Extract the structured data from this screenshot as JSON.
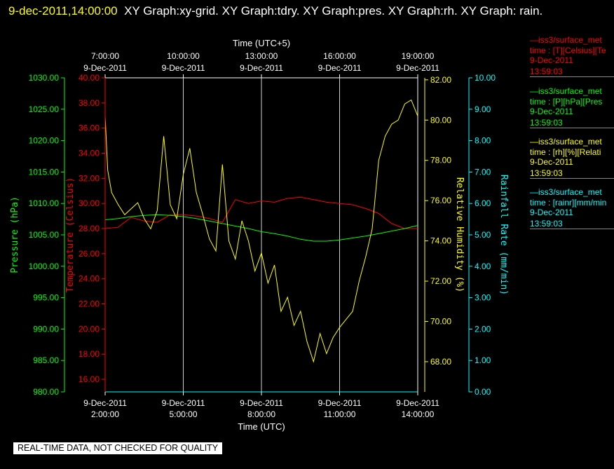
{
  "header": {
    "timestamp": "9-dec-2011,14:00:00",
    "title_rest": "XY Graph:xy-grid.  XY Graph:tdry.  XY Graph:pres.  XY Graph:rh.  XY Graph: rain."
  },
  "footer": {
    "notice": "REAL-TIME DATA, NOT CHECKED FOR QUALITY"
  },
  "legend": [
    {
      "line1": "—iss3/surface_met",
      "line2": "time : [T][Celsius][Te",
      "line3": "9-Dec-2011",
      "line4": "13:59:03",
      "color": "#ff0000"
    },
    {
      "line1": "—iss3/surface_met",
      "line2": "time : [P][hPa][Pres",
      "line3": "9-Dec-2011",
      "line4": "13:59:03",
      "color": "#00ff00"
    },
    {
      "line1": "—iss3/surface_met",
      "line2": "time : [rh][%][Relati",
      "line3": "9-Dec-2011",
      "line4": "13:59:03",
      "color": "#ffff00"
    },
    {
      "line1": "—iss3/surface_met",
      "line2": "time : [rainr][mm/min",
      "line3": "9-Dec-2011",
      "line4": "13:59:03",
      "color": "#00ffff"
    }
  ],
  "chart_data": {
    "type": "line",
    "grid": true,
    "top_axis": {
      "label": "Time (UTC+5)",
      "ticks": [
        {
          "time": "7:00:00",
          "date": "9-Dec-2011"
        },
        {
          "time": "10:00:00",
          "date": "9-Dec-2011"
        },
        {
          "time": "13:00:00",
          "date": "9-Dec-2011"
        },
        {
          "time": "16:00:00",
          "date": "9-Dec-2011"
        },
        {
          "time": "19:00:00",
          "date": "9-Dec-2011"
        }
      ]
    },
    "bottom_axis": {
      "label": "Time (UTC)",
      "xlim": [
        "2:00:00",
        "14:00:00"
      ],
      "ticks": [
        {
          "date": "9-Dec-2011",
          "time": "2:00:00"
        },
        {
          "date": "9-Dec-2011",
          "time": "5:00:00"
        },
        {
          "date": "9-Dec-2011",
          "time": "8:00:00"
        },
        {
          "date": "9-Dec-2011",
          "time": "11:00:00"
        },
        {
          "date": "9-Dec-2011",
          "time": "14:00:00"
        }
      ]
    },
    "y_axes": [
      {
        "key": "pressure",
        "label": "Pressure (hPa)",
        "color": "#00ff00",
        "ylim": [
          980,
          1030
        ],
        "ticks": [
          "980.00",
          "985.00",
          "990.00",
          "995.00",
          "1000.00",
          "1005.00",
          "1010.00",
          "1015.00",
          "1020.00",
          "1025.00",
          "1030.00"
        ]
      },
      {
        "key": "temperature",
        "label": "Temperature (Celsius)",
        "color": "#ff0000",
        "ylim": [
          15,
          40
        ],
        "ticks": [
          "16.00",
          "18.00",
          "20.00",
          "22.00",
          "24.00",
          "26.00",
          "28.00",
          "30.00",
          "32.00",
          "34.00",
          "36.00",
          "38.00",
          "40.00"
        ]
      },
      {
        "key": "humidity",
        "label": "Relative Humidity (%)",
        "color": "#ffff00",
        "ylim": [
          66.5,
          82.1
        ],
        "ticks": [
          "68.00",
          "70.00",
          "72.00",
          "74.00",
          "76.00",
          "78.00",
          "80.00",
          "82.00"
        ]
      },
      {
        "key": "rain",
        "label": "Rainfall Rate (mm/min)",
        "color": "#00ffff",
        "ylim": [
          0,
          10
        ],
        "ticks": [
          "0.00",
          "1.00",
          "2.00",
          "3.00",
          "4.00",
          "5.00",
          "6.00",
          "7.00",
          "8.00",
          "9.00",
          "10.00"
        ]
      }
    ],
    "series": [
      {
        "axis": "temperature",
        "color": "#ff0000",
        "x": [
          2.0,
          2.5,
          3.0,
          3.5,
          4.0,
          4.5,
          5.0,
          5.5,
          6.0,
          6.5,
          7.0,
          7.5,
          8.0,
          8.5,
          9.0,
          9.5,
          10.0,
          10.5,
          11.0,
          11.5,
          12.0,
          12.5,
          13.0,
          13.5,
          14.0
        ],
        "y": [
          28.0,
          28.1,
          28.9,
          28.6,
          28.5,
          29.1,
          29.1,
          29.0,
          28.8,
          28.5,
          30.3,
          30.0,
          30.2,
          30.1,
          30.4,
          30.5,
          30.3,
          30.1,
          30.0,
          29.9,
          29.6,
          29.2,
          28.4,
          28.0,
          28.0
        ]
      },
      {
        "axis": "pressure",
        "color": "#00ff00",
        "x": [
          2.0,
          2.5,
          3.0,
          3.5,
          4.0,
          4.5,
          5.0,
          5.5,
          6.0,
          6.5,
          7.0,
          7.5,
          8.0,
          8.5,
          9.0,
          9.5,
          10.0,
          10.5,
          11.0,
          11.5,
          12.0,
          12.5,
          13.0,
          13.5,
          14.0
        ],
        "y": [
          1007.4,
          1007.6,
          1007.9,
          1008.1,
          1008.2,
          1008.1,
          1007.9,
          1007.6,
          1007.2,
          1006.8,
          1006.4,
          1006.0,
          1005.5,
          1005.2,
          1004.8,
          1004.3,
          1004.0,
          1004.0,
          1004.2,
          1004.5,
          1004.8,
          1005.2,
          1005.6,
          1006.0,
          1006.5
        ]
      },
      {
        "axis": "humidity",
        "color": "#ffff00",
        "x": [
          2.0,
          2.1,
          2.25,
          2.5,
          2.75,
          3.0,
          3.25,
          3.5,
          3.75,
          4.0,
          4.25,
          4.5,
          4.75,
          5.0,
          5.25,
          5.5,
          5.75,
          6.0,
          6.25,
          6.5,
          6.75,
          7.0,
          7.25,
          7.5,
          7.75,
          8.0,
          8.25,
          8.5,
          8.75,
          9.0,
          9.25,
          9.5,
          9.75,
          10.0,
          10.25,
          10.5,
          10.75,
          11.0,
          11.25,
          11.5,
          11.75,
          12.0,
          12.25,
          12.5,
          12.75,
          13.0,
          13.25,
          13.5,
          13.75,
          14.0
        ],
        "y": [
          80.2,
          77.5,
          76.4,
          75.8,
          75.3,
          75.6,
          75.9,
          75.1,
          74.6,
          75.5,
          79.2,
          75.8,
          75.1,
          77.3,
          78.6,
          76.4,
          75.3,
          74.1,
          73.5,
          77.8,
          74.0,
          73.1,
          75.0,
          74.0,
          72.5,
          73.4,
          71.9,
          72.8,
          70.5,
          71.2,
          69.8,
          70.5,
          69.0,
          68.0,
          69.4,
          68.4,
          69.2,
          69.7,
          70.1,
          70.5,
          72.0,
          73.2,
          74.6,
          78.0,
          79.2,
          79.8,
          80.0,
          80.8,
          81.0,
          80.2
        ]
      },
      {
        "axis": "rain",
        "color": "#00ffff",
        "x": [
          2.0,
          14.0
        ],
        "y": [
          0.0,
          0.0
        ]
      }
    ]
  }
}
